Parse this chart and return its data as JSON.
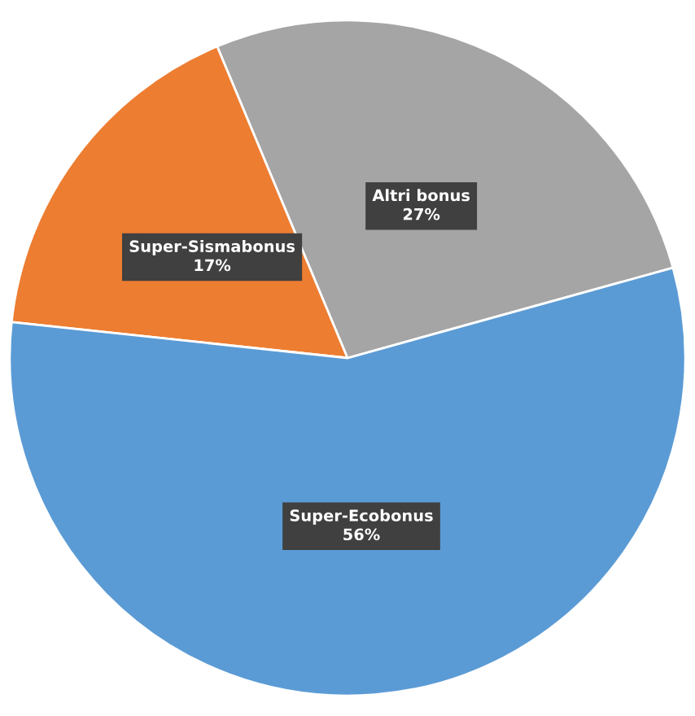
{
  "chart_data": {
    "type": "pie",
    "categories": [
      "Altri bonus",
      "Super-Sismabonus",
      "Super-Ecobonus"
    ],
    "values": [
      27,
      17,
      56
    ],
    "colors": [
      "#a5a5a5",
      "#ed7d31",
      "#5b9bd5"
    ],
    "value_labels": [
      "27%",
      "17%",
      "56%"
    ],
    "legend": false
  }
}
